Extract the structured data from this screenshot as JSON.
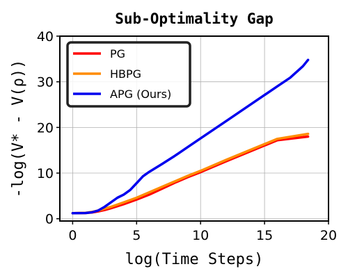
{
  "chart_data": {
    "type": "line",
    "title": "Sub-Optimality Gap",
    "xlabel": "log(Time Steps)",
    "ylabel": "-log(V* - V(ρ))",
    "xlim": [
      -1,
      20
    ],
    "ylim": [
      -0.5,
      40
    ],
    "xticks": [
      0,
      5,
      10,
      15,
      20
    ],
    "yticks": [
      0,
      10,
      20,
      30,
      40
    ],
    "grid": true,
    "legend_position": "top-left",
    "series": [
      {
        "name": "PG",
        "color": "#ff0000",
        "x": [
          0,
          1,
          1.5,
          2,
          2.5,
          3,
          4,
          5,
          6,
          7,
          8,
          9,
          10,
          12,
          14,
          16,
          18.4
        ],
        "y": [
          1.2,
          1.25,
          1.35,
          1.6,
          1.9,
          2.3,
          3.2,
          4.2,
          5.3,
          6.6,
          7.9,
          9.1,
          10.2,
          12.6,
          14.9,
          17.2,
          18.0
        ]
      },
      {
        "name": "HBPG",
        "color": "#ff8c00",
        "x": [
          0,
          1,
          1.5,
          2,
          2.5,
          3,
          4,
          5,
          6,
          7,
          8,
          9,
          10,
          12,
          14,
          16,
          18.4
        ],
        "y": [
          1.2,
          1.3,
          1.5,
          1.8,
          2.2,
          2.6,
          3.6,
          4.6,
          5.8,
          7.0,
          8.2,
          9.4,
          10.5,
          12.9,
          15.2,
          17.5,
          18.6
        ]
      },
      {
        "name": "APG (Ours)",
        "color": "#0000ee",
        "x": [
          0,
          1,
          1.5,
          2,
          2.5,
          3,
          3.5,
          4,
          4.5,
          5,
          5.5,
          6,
          7,
          8,
          9,
          10,
          12,
          14,
          16,
          17,
          18,
          18.4
        ],
        "y": [
          1.2,
          1.25,
          1.4,
          1.8,
          2.6,
          3.6,
          4.6,
          5.3,
          6.3,
          7.8,
          9.3,
          10.3,
          12.0,
          13.8,
          15.7,
          17.6,
          21.4,
          25.2,
          29.0,
          30.9,
          33.4,
          34.8
        ]
      }
    ]
  }
}
